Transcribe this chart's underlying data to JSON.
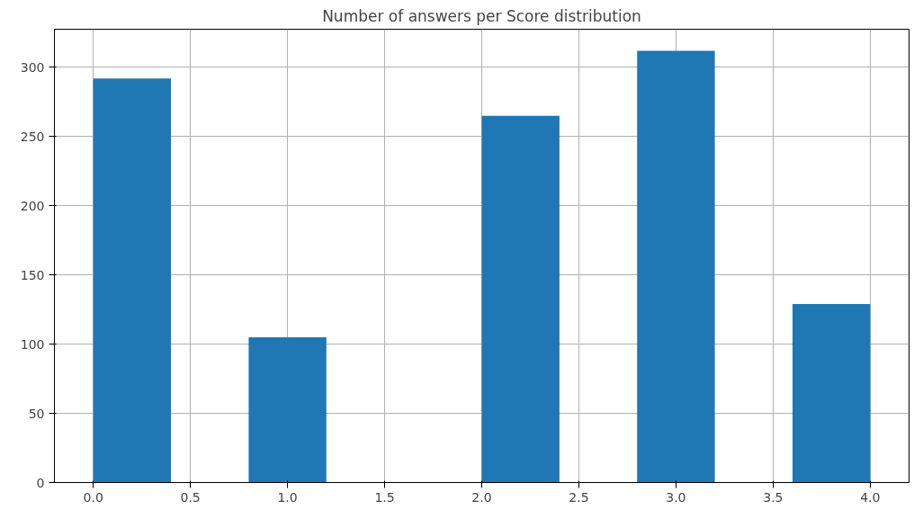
{
  "chart_data": {
    "type": "histogram",
    "title": "Number of answers per Score distribution",
    "bins": [
      0,
      0.4,
      0.8,
      1.2,
      1.6,
      2.0,
      2.4,
      2.8,
      3.2,
      3.6,
      4.0
    ],
    "values": [
      292,
      0,
      105,
      0,
      0,
      265,
      0,
      312,
      0,
      129
    ],
    "color": "#1f77b4",
    "xlim": [
      -0.2,
      4.2
    ],
    "xticks": [
      {
        "value": 0,
        "label": "0.0"
      },
      {
        "value": 0.5,
        "label": "0.5"
      },
      {
        "value": 1,
        "label": "1.0"
      },
      {
        "value": 1.5,
        "label": "1.5"
      },
      {
        "value": 2,
        "label": "2.0"
      },
      {
        "value": 2.5,
        "label": "2.5"
      },
      {
        "value": 3,
        "label": "3.0"
      },
      {
        "value": 3.5,
        "label": "3.5"
      },
      {
        "value": 4,
        "label": "4.0"
      }
    ],
    "ylim": [
      0,
      327.6
    ],
    "yticks": [
      0,
      50,
      100,
      150,
      200,
      250,
      300
    ],
    "grid": true
  }
}
